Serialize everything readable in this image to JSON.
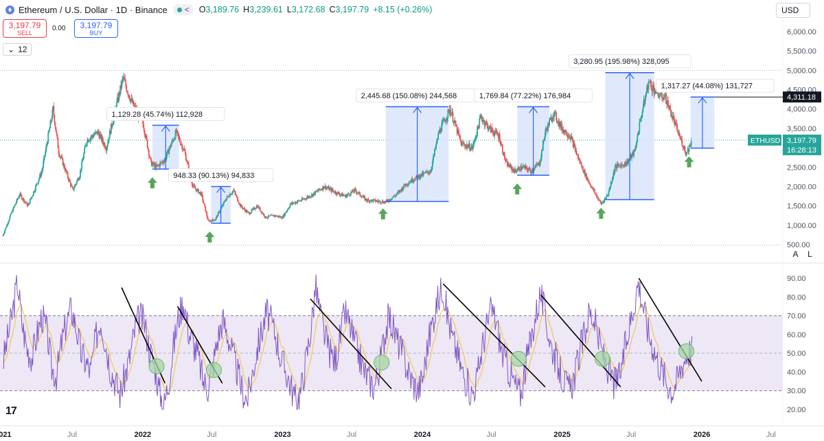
{
  "header": {
    "title": "Ethereum / U.S. Dollar · 1D · Binance",
    "ohlc": [
      {
        "k": "O",
        "v": "3,189.76"
      },
      {
        "k": "H",
        "v": "3,239.61"
      },
      {
        "k": "L",
        "v": "3,172.68"
      },
      {
        "k": "C",
        "v": "3,197.79"
      }
    ],
    "change": "+8.15 (+0.26%)",
    "currency": "USD"
  },
  "trade": {
    "sell_price": "3,197.79",
    "sell_label": "SELL",
    "spread": "0.00",
    "buy_price": "3,197.79",
    "buy_label": "BUY"
  },
  "indicators_count": "12",
  "scale_buttons": {
    "auto": "A",
    "log": "L"
  },
  "colors": {
    "up": "#26a69a",
    "down": "#ef5350",
    "accent": "#2962ff",
    "range_fill": "#dbe5fb",
    "rsi": "#7e57c2",
    "rsi_ma": "#f2c94c",
    "rsi_band": "#ede7f6",
    "arrow": "#58a55c"
  },
  "chart_data": [
    {
      "type": "candlestick",
      "name": "price",
      "yaxis": {
        "ticks": [
          500,
          1000,
          1500,
          2000,
          2500,
          3000,
          3500,
          4000,
          4500,
          5000,
          5500,
          6000
        ],
        "tick_labels": [
          "500.00",
          "1,000.00",
          "1,500.00",
          "2,000.00",
          "2,500.00",
          "3,000.00",
          "3,500.00",
          "4,000.00",
          "4,500.00",
          "5,000.00",
          "5,500.00",
          "6,000.00"
        ],
        "ylim": [
          400,
          6400
        ]
      },
      "xaxis": {
        "labels": [
          {
            "t": 2021.0,
            "label": "2021"
          },
          {
            "t": 2021.5,
            "label": "Jul"
          },
          {
            "t": 2022.0,
            "label": "2022"
          },
          {
            "t": 2022.5,
            "label": "Jul"
          },
          {
            "t": 2023.0,
            "label": "2023"
          },
          {
            "t": 2023.5,
            "label": "Jul"
          },
          {
            "t": 2024.0,
            "label": "2024"
          },
          {
            "t": 2024.5,
            "label": "Jul"
          },
          {
            "t": 2025.0,
            "label": "2025"
          },
          {
            "t": 2025.5,
            "label": "Jul"
          },
          {
            "t": 2026.0,
            "label": "2026"
          },
          {
            "t": 2026.5,
            "label": "Jul"
          }
        ],
        "xlim": [
          2020.98,
          2026.58
        ]
      },
      "trend_path": [
        [
          2021.0,
          730
        ],
        [
          2021.06,
          1300
        ],
        [
          2021.12,
          1800
        ],
        [
          2021.18,
          1500
        ],
        [
          2021.28,
          2400
        ],
        [
          2021.36,
          4000
        ],
        [
          2021.4,
          2900
        ],
        [
          2021.45,
          2400
        ],
        [
          2021.5,
          1900
        ],
        [
          2021.55,
          2300
        ],
        [
          2021.6,
          3200
        ],
        [
          2021.68,
          3400
        ],
        [
          2021.74,
          3000
        ],
        [
          2021.8,
          3900
        ],
        [
          2021.86,
          4800
        ],
        [
          2021.92,
          4200
        ],
        [
          2021.96,
          3900
        ],
        [
          2022.0,
          3700
        ],
        [
          2022.06,
          2600
        ],
        [
          2022.1,
          2500
        ],
        [
          2022.16,
          2700
        ],
        [
          2022.24,
          3400
        ],
        [
          2022.3,
          2900
        ],
        [
          2022.36,
          2000
        ],
        [
          2022.42,
          1800
        ],
        [
          2022.47,
          1100
        ],
        [
          2022.52,
          1150
        ],
        [
          2022.6,
          1700
        ],
        [
          2022.65,
          1900
        ],
        [
          2022.7,
          1500
        ],
        [
          2022.76,
          1300
        ],
        [
          2022.82,
          1500
        ],
        [
          2022.88,
          1200
        ],
        [
          2022.94,
          1250
        ],
        [
          2023.0,
          1200
        ],
        [
          2023.06,
          1550
        ],
        [
          2023.14,
          1650
        ],
        [
          2023.22,
          1800
        ],
        [
          2023.3,
          2000
        ],
        [
          2023.38,
          1850
        ],
        [
          2023.45,
          1750
        ],
        [
          2023.52,
          1900
        ],
        [
          2023.6,
          1650
        ],
        [
          2023.68,
          1620
        ],
        [
          2023.74,
          1600
        ],
        [
          2023.82,
          1800
        ],
        [
          2023.88,
          2050
        ],
        [
          2023.94,
          2200
        ],
        [
          2024.0,
          2300
        ],
        [
          2024.06,
          2400
        ],
        [
          2024.12,
          3400
        ],
        [
          2024.2,
          4000
        ],
        [
          2024.28,
          3100
        ],
        [
          2024.36,
          3000
        ],
        [
          2024.42,
          3800
        ],
        [
          2024.48,
          3500
        ],
        [
          2024.55,
          3300
        ],
        [
          2024.6,
          2600
        ],
        [
          2024.66,
          2400
        ],
        [
          2024.72,
          2500
        ],
        [
          2024.78,
          2400
        ],
        [
          2024.84,
          2600
        ],
        [
          2024.88,
          3400
        ],
        [
          2024.94,
          3900
        ],
        [
          2025.0,
          3500
        ],
        [
          2025.06,
          3300
        ],
        [
          2025.12,
          2700
        ],
        [
          2025.18,
          2200
        ],
        [
          2025.24,
          1800
        ],
        [
          2025.28,
          1550
        ],
        [
          2025.33,
          1800
        ],
        [
          2025.38,
          2500
        ],
        [
          2025.46,
          2600
        ],
        [
          2025.52,
          2900
        ],
        [
          2025.56,
          3700
        ],
        [
          2025.62,
          4700
        ],
        [
          2025.68,
          4400
        ],
        [
          2025.74,
          4300
        ],
        [
          2025.78,
          3900
        ],
        [
          2025.84,
          3300
        ],
        [
          2025.89,
          2850
        ],
        [
          2025.93,
          3197.79
        ]
      ],
      "events": [
        {
          "x_bottom": 2022.07,
          "low": 2450,
          "high": 3580,
          "label": "1,129.28 (45.74%) 112,928",
          "x0": 2022.07,
          "x1": 2022.26,
          "arrow_x": 2022.07
        },
        {
          "x_bottom": 2022.48,
          "low": 1050,
          "high": 2000,
          "label": "948.33 (90.13%) 94,833",
          "x0": 2022.49,
          "x1": 2022.63,
          "arrow_x": 2022.48
        },
        {
          "x_bottom": 2023.72,
          "low": 1610,
          "high": 4060,
          "label": "2,445.68 (150.08%) 244,568",
          "x0": 2023.74,
          "x1": 2024.19,
          "arrow_x": 2023.72
        },
        {
          "x_bottom": 2024.68,
          "low": 2290,
          "high": 4060,
          "label": "1,769.84 (77.22%) 176,984",
          "x0": 2024.68,
          "x1": 2024.91,
          "arrow_x": 2024.68
        },
        {
          "x_bottom": 2025.28,
          "low": 1660,
          "high": 4940,
          "label": "3,280.95 (195.98%) 328,095",
          "x0": 2025.31,
          "x1": 2025.66,
          "arrow_x": 2025.28
        },
        {
          "x_bottom": 2025.91,
          "low": 2990,
          "high": 4311.18,
          "label": "1,317.27 (44.08%) 131,727",
          "x0": 2025.92,
          "x1": 2026.09,
          "arrow_x": 2025.91
        }
      ],
      "price_labels": [
        {
          "value": 4311.18,
          "label": "4,311.18",
          "style": "dark"
        },
        {
          "value": 3197.79,
          "label": "3,197.79",
          "sub": "16:28:13",
          "tag": "ETHUSD",
          "style": "teal"
        }
      ]
    },
    {
      "type": "line",
      "name": "rsi",
      "yaxis": {
        "ticks": [
          20,
          30,
          40,
          50,
          60,
          70,
          80,
          90
        ],
        "tick_labels": [
          "20.00",
          "30.00",
          "40.00",
          "50.00",
          "60.00",
          "70.00",
          "80.00",
          "90.00"
        ],
        "ylim": [
          15,
          97
        ],
        "band": [
          30,
          70
        ],
        "mid": 50
      },
      "series": [
        {
          "values": [
            45,
            58,
            72,
            88,
            65,
            52,
            48,
            60,
            70,
            62,
            42,
            38,
            55,
            66,
            74,
            64,
            50,
            45,
            40,
            58,
            68,
            56,
            42,
            35,
            28,
            38,
            48,
            62,
            70,
            66,
            52,
            44,
            30,
            22,
            36,
            55,
            70,
            78,
            62,
            55,
            48,
            35,
            32,
            44,
            58,
            68,
            60,
            50,
            40,
            30,
            25,
            38,
            52,
            62,
            72,
            66,
            58,
            46,
            40,
            32,
            24,
            30,
            46,
            62,
            86,
            70,
            58,
            50,
            46,
            58,
            72,
            65,
            55,
            48,
            40,
            36,
            32,
            42,
            58,
            70,
            62,
            55,
            48,
            40,
            34,
            30,
            38,
            55,
            68,
            78,
            86,
            70,
            58,
            50,
            40,
            34,
            28,
            36,
            52,
            64,
            74,
            66,
            52,
            44,
            38,
            32,
            28,
            44,
            56,
            70,
            82,
            70,
            56,
            48,
            40,
            34,
            30,
            38,
            50,
            60,
            72,
            68,
            56,
            48,
            40,
            34,
            36,
            48,
            62,
            74,
            88,
            76,
            62,
            54,
            46,
            40,
            34,
            30,
            36,
            44,
            50,
            52
          ]
        }
      ],
      "trendlines": [
        [
          [
            2021.85,
            85
          ],
          [
            2022.16,
            34
          ]
        ],
        [
          [
            2022.25,
            75
          ],
          [
            2022.57,
            34
          ]
        ],
        [
          [
            2023.2,
            79
          ],
          [
            2023.78,
            31
          ]
        ],
        [
          [
            2024.15,
            87
          ],
          [
            2024.88,
            32
          ]
        ],
        [
          [
            2024.85,
            81
          ],
          [
            2025.42,
            32
          ]
        ],
        [
          [
            2025.55,
            90
          ],
          [
            2026.0,
            35
          ]
        ]
      ],
      "circles": [
        [
          2022.1,
          43
        ],
        [
          2022.51,
          41
        ],
        [
          2023.71,
          45
        ],
        [
          2024.69,
          47
        ],
        [
          2025.29,
          47
        ],
        [
          2025.89,
          51
        ]
      ]
    }
  ]
}
